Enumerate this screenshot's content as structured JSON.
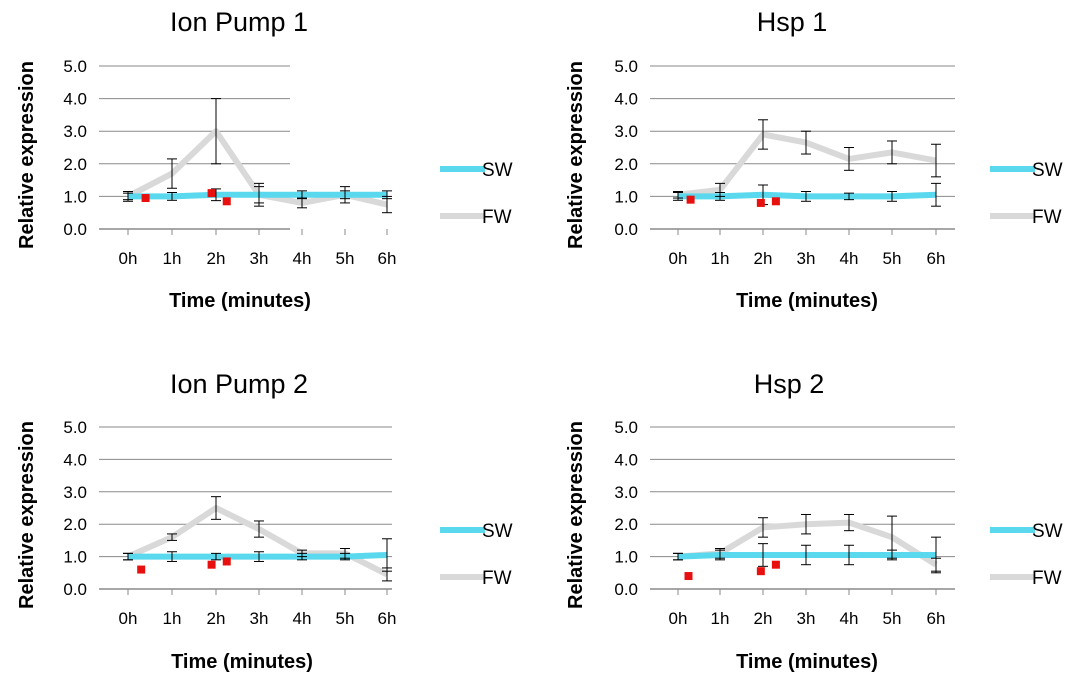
{
  "colors": {
    "SW": "#5ad8ee",
    "FW": "#d9d9d9",
    "marker": "#e8100e",
    "grid": "#8a8a8a",
    "error_bar": "#000000"
  },
  "chart_data": [
    {
      "type": "line",
      "title": "Ion Pump 1",
      "xlabel": "Time (minutes)",
      "ylabel": "Relative expression",
      "categories": [
        "0h",
        "1h",
        "2h",
        "3h",
        "4h",
        "5h",
        "6h"
      ],
      "ylim": [
        0,
        5
      ],
      "yticks": [
        "0.0",
        "1.0",
        "2.0",
        "3.0",
        "4.0",
        "5.0"
      ],
      "grid": true,
      "legend": "right",
      "series": [
        {
          "name": "SW",
          "values": [
            1.0,
            1.0,
            1.05,
            1.05,
            1.05,
            1.05,
            1.05
          ],
          "errors": [
            0.1,
            0.12,
            0.18,
            0.25,
            0.12,
            0.12,
            0.12
          ]
        },
        {
          "name": "FW",
          "values": [
            1.0,
            1.7,
            3.0,
            1.05,
            0.8,
            1.05,
            0.75
          ],
          "errors": [
            0.15,
            0.45,
            1.0,
            0.35,
            0.15,
            0.25,
            0.25
          ]
        }
      ],
      "markers": [
        {
          "x": 0.4,
          "y": 0.95
        },
        {
          "x": 1.9,
          "y": 1.1
        },
        {
          "x": 2.25,
          "y": 0.85
        }
      ]
    },
    {
      "type": "line",
      "title": "Hsp 1",
      "xlabel": "Time (minutes)",
      "ylabel": "Relative expression",
      "categories": [
        "0h",
        "1h",
        "2h",
        "3h",
        "4h",
        "5h",
        "6h"
      ],
      "ylim": [
        0,
        5
      ],
      "yticks": [
        "0.0",
        "1.0",
        "2.0",
        "3.0",
        "4.0",
        "5.0"
      ],
      "grid": true,
      "legend": "right",
      "series": [
        {
          "name": "SW",
          "values": [
            1.0,
            1.0,
            1.05,
            1.0,
            1.0,
            1.0,
            1.05
          ],
          "errors": [
            0.12,
            0.12,
            0.3,
            0.15,
            0.1,
            0.15,
            0.35
          ]
        },
        {
          "name": "FW",
          "values": [
            1.05,
            1.2,
            2.9,
            2.65,
            2.15,
            2.35,
            2.1
          ],
          "errors": [
            0.1,
            0.2,
            0.45,
            0.35,
            0.35,
            0.35,
            0.5
          ]
        }
      ],
      "markers": [
        {
          "x": 0.3,
          "y": 0.9
        },
        {
          "x": 1.95,
          "y": 0.8
        },
        {
          "x": 2.3,
          "y": 0.85
        }
      ]
    },
    {
      "type": "line",
      "title": "Ion Pump 2",
      "xlabel": "Time (minutes)",
      "ylabel": "Relative expression",
      "categories": [
        "0h",
        "1h",
        "2h",
        "3h",
        "4h",
        "5h",
        "6h"
      ],
      "ylim": [
        0,
        5
      ],
      "yticks": [
        "0.0",
        "1.0",
        "2.0",
        "3.0",
        "4.0",
        "5.0"
      ],
      "grid": true,
      "legend": "right",
      "series": [
        {
          "name": "SW",
          "values": [
            1.0,
            1.0,
            1.0,
            1.0,
            1.0,
            1.0,
            1.05
          ],
          "errors": [
            0.1,
            0.15,
            0.1,
            0.15,
            0.1,
            0.1,
            0.5
          ]
        },
        {
          "name": "FW",
          "values": [
            1.0,
            1.6,
            2.5,
            1.85,
            1.1,
            1.1,
            0.45
          ],
          "errors": [
            0.1,
            0.1,
            0.35,
            0.25,
            0.1,
            0.15,
            0.2
          ]
        }
      ],
      "markers": [
        {
          "x": 0.3,
          "y": 0.6
        },
        {
          "x": 1.9,
          "y": 0.75
        },
        {
          "x": 2.25,
          "y": 0.85
        }
      ]
    },
    {
      "type": "line",
      "title": "Hsp 2",
      "xlabel": "Time (minutes)",
      "ylabel": "Relative expression",
      "categories": [
        "0h",
        "1h",
        "2h",
        "3h",
        "4h",
        "5h",
        "6h"
      ],
      "ylim": [
        0,
        5
      ],
      "yticks": [
        "0.0",
        "1.0",
        "2.0",
        "3.0",
        "4.0",
        "5.0"
      ],
      "grid": true,
      "legend": "right",
      "series": [
        {
          "name": "SW",
          "values": [
            1.0,
            1.05,
            1.05,
            1.05,
            1.05,
            1.05,
            1.05
          ],
          "errors": [
            0.1,
            0.15,
            0.35,
            0.3,
            0.3,
            0.15,
            0.55
          ]
        },
        {
          "name": "FW",
          "values": [
            1.0,
            1.1,
            1.9,
            2.0,
            2.05,
            1.6,
            0.75
          ],
          "errors": [
            0.1,
            0.15,
            0.3,
            0.3,
            0.25,
            0.65,
            0.2
          ]
        }
      ],
      "markers": [
        {
          "x": 0.25,
          "y": 0.4
        },
        {
          "x": 1.95,
          "y": 0.55
        },
        {
          "x": 2.3,
          "y": 0.75
        }
      ]
    }
  ]
}
